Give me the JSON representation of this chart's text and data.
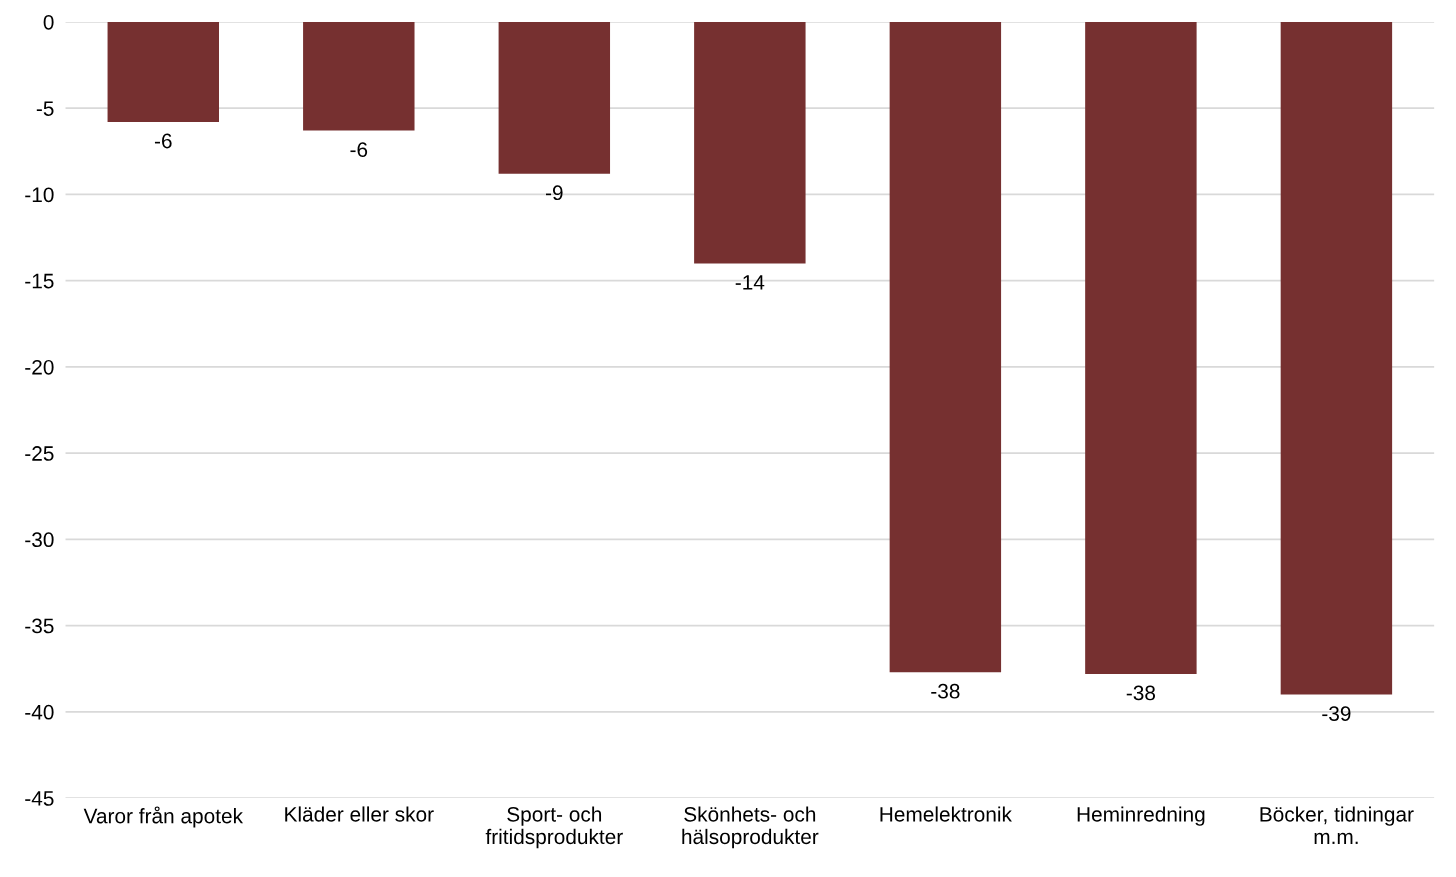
{
  "chart_data": {
    "type": "bar",
    "categories": [
      "Varor från apotek",
      "Kläder eller skor",
      "Sport- och\nfritidsprodukter",
      "Skönhets- och\nhälsoprodukter",
      "Hemelektronik",
      "Heminredning",
      "Böcker, tidningar\nm.m."
    ],
    "series": [
      {
        "color": "#763030",
        "values": [
          -5.8,
          -6.3,
          -8.8,
          -14.0,
          -37.7,
          -37.8,
          -39.0
        ],
        "value_labels": [
          "-6",
          "-6",
          "-9",
          "-14",
          "-38",
          "-38",
          "-39"
        ]
      }
    ],
    "ylim": [
      -45,
      0
    ],
    "yticks": [
      -45,
      -40,
      -35,
      -30,
      -25,
      -20,
      -15,
      -10,
      -5,
      0
    ],
    "grid": "y"
  }
}
